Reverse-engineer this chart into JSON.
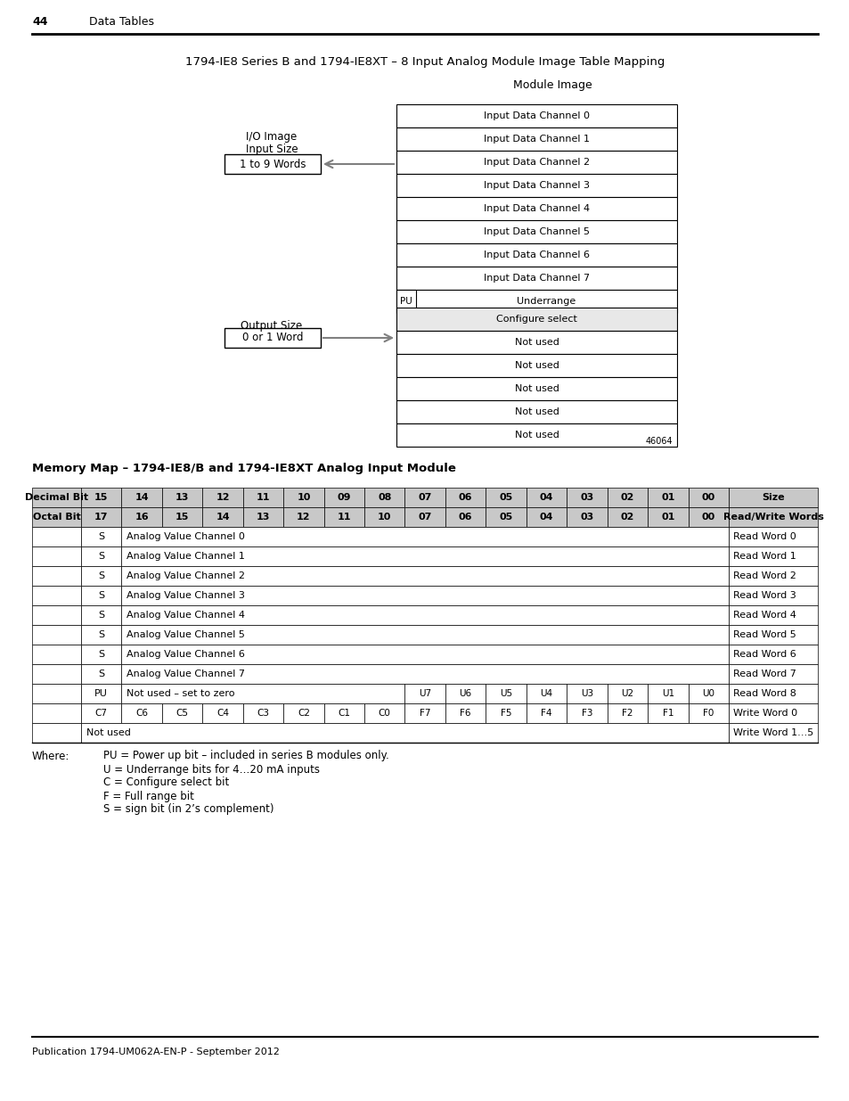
{
  "page_number": "44",
  "page_header": "Data Tables",
  "top_title": "1794-IE8 Series B and 1794-IE8XT – 8 Input Analog Module Image Table Mapping",
  "module_image_label": "Module Image",
  "io_image_label": "I/O Image",
  "input_size_label": "Input Size",
  "input_size_box": "1 to 9 Words",
  "output_size_label": "Output Size",
  "output_size_box": "0 or 1 Word",
  "input_rows": [
    "Input Data Channel 0",
    "Input Data Channel 1",
    "Input Data Channel 2",
    "Input Data Channel 3",
    "Input Data Channel 4",
    "Input Data Channel 5",
    "Input Data Channel 6",
    "Input Data Channel 7"
  ],
  "pu_row_left": "PU",
  "pu_row_right": "Underrange",
  "output_rows": [
    "Configure select",
    "Not used",
    "Not used",
    "Not used",
    "Not used",
    "Not used"
  ],
  "figure_number": "46064",
  "memory_map_title": "Memory Map – 1794-IE8/B and 1794-IE8XT Analog Input Module",
  "table_header1": [
    "Decimal Bit",
    "15",
    "14",
    "13",
    "12",
    "11",
    "10",
    "09",
    "08",
    "07",
    "06",
    "05",
    "04",
    "03",
    "02",
    "01",
    "00",
    "Size"
  ],
  "table_header2": [
    "Octal Bit",
    "17",
    "16",
    "15",
    "14",
    "13",
    "12",
    "11",
    "10",
    "07",
    "06",
    "05",
    "04",
    "03",
    "02",
    "01",
    "00",
    "Read/Write Words"
  ],
  "table_rows": [
    [
      "",
      "S",
      "Analog Value Channel 0",
      "",
      "",
      "",
      "",
      "",
      "",
      "",
      "",
      "",
      "",
      "",
      "",
      "",
      "Read Word 0"
    ],
    [
      "",
      "S",
      "Analog Value Channel 1",
      "",
      "",
      "",
      "",
      "",
      "",
      "",
      "",
      "",
      "",
      "",
      "",
      "",
      "Read Word 1"
    ],
    [
      "",
      "S",
      "Analog Value Channel 2",
      "",
      "",
      "",
      "",
      "",
      "",
      "",
      "",
      "",
      "",
      "",
      "",
      "",
      "Read Word 2"
    ],
    [
      "",
      "S",
      "Analog Value Channel 3",
      "",
      "",
      "",
      "",
      "",
      "",
      "",
      "",
      "",
      "",
      "",
      "",
      "",
      "Read Word 3"
    ],
    [
      "",
      "S",
      "Analog Value Channel 4",
      "",
      "",
      "",
      "",
      "",
      "",
      "",
      "",
      "",
      "",
      "",
      "",
      "",
      "Read Word 4"
    ],
    [
      "",
      "S",
      "Analog Value Channel 5",
      "",
      "",
      "",
      "",
      "",
      "",
      "",
      "",
      "",
      "",
      "",
      "",
      "",
      "Read Word 5"
    ],
    [
      "",
      "S",
      "Analog Value Channel 6",
      "",
      "",
      "",
      "",
      "",
      "",
      "",
      "",
      "",
      "",
      "",
      "",
      "",
      "Read Word 6"
    ],
    [
      "",
      "S",
      "Analog Value Channel 7",
      "",
      "",
      "",
      "",
      "",
      "",
      "",
      "",
      "",
      "",
      "",
      "",
      "",
      "Read Word 7"
    ],
    [
      "",
      "PU",
      "Not used – set to zero",
      "",
      "",
      "",
      "",
      "",
      "U7",
      "U6",
      "U5",
      "U4",
      "U3",
      "U2",
      "U1",
      "U0",
      "Read Word 8"
    ],
    [
      "",
      "C7",
      "C6",
      "C5",
      "C4",
      "C3",
      "C2",
      "C1",
      "C0",
      "F7",
      "F6",
      "F5",
      "F4",
      "F3",
      "F2",
      "F1",
      "F0",
      "Write Word 0"
    ],
    [
      "",
      "Not used",
      "",
      "",
      "",
      "",
      "",
      "",
      "",
      "",
      "",
      "",
      "",
      "",
      "",
      "",
      "Write Word 1…5"
    ]
  ],
  "where_label": "Where:",
  "where_lines": [
    "PU = Power up bit – included in series B modules only.",
    "U = Underrange bits for 4…20 mA inputs",
    "C = Configure select bit",
    "F = Full range bit",
    "S = sign bit (in 2’s complement)"
  ],
  "footer": "Publication 1794-UM062A-EN-P - September 2012",
  "bg_color": "#ffffff",
  "text_color": "#000000",
  "header_bg": "#d0d0d0",
  "border_color": "#000000",
  "light_gray": "#e8e8e8"
}
